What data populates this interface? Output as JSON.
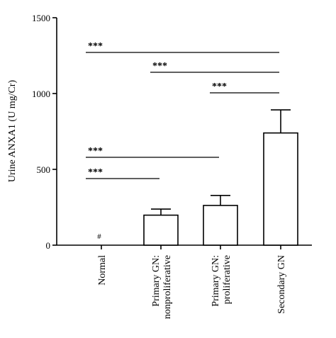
{
  "chart_data": {
    "type": "bar",
    "categories": [
      "Normal",
      "Primary GN:\nnonproliferative",
      "Primary GN:\nproliferative",
      "Secondary GN"
    ],
    "values": [
      0,
      198,
      262,
      740
    ],
    "error_upper": [
      0,
      238,
      328,
      892
    ],
    "ylabel": "Urine ANXA1 (U mg/Cr)",
    "xlabel": "",
    "ylim": [
      0,
      1500
    ],
    "yticks": [
      0,
      500,
      1000,
      1500
    ],
    "grid": false,
    "annotations": [
      {
        "text": "#",
        "category": 0
      },
      {
        "text": "***",
        "from": 0,
        "to": 3,
        "tier": 1
      },
      {
        "text": "***",
        "from": 1,
        "to": 3,
        "tier": 2
      },
      {
        "text": "***",
        "from": 2,
        "to": 3,
        "tier": 3
      },
      {
        "text": "***",
        "from": 0,
        "to": 2,
        "tier": 4
      },
      {
        "text": "***",
        "from": 0,
        "to": 1,
        "tier": 5
      }
    ],
    "colors": {
      "bar_fill": "#ffffff",
      "stroke": "#000000"
    }
  }
}
